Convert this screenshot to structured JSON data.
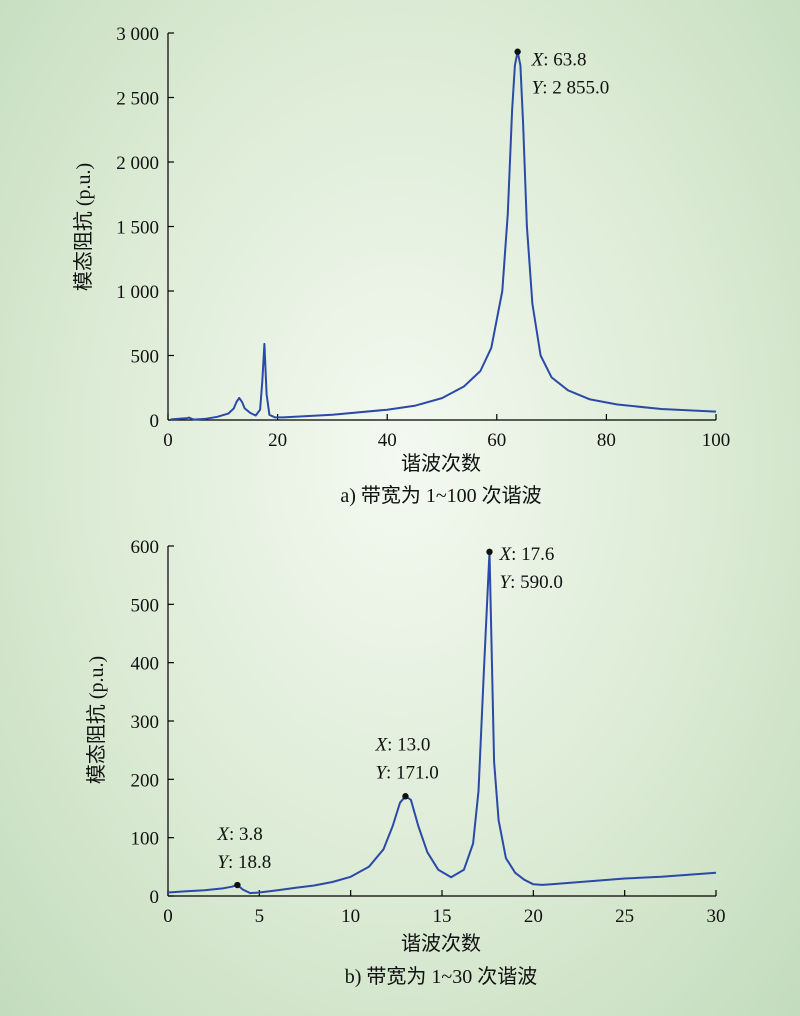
{
  "chart_data": [
    {
      "type": "line",
      "caption": "a) 带宽为 1~100 次谐波",
      "xlabel": "谐波次数",
      "ylabel": "模态阻抗 (p.u.)",
      "xlim": [
        0,
        100
      ],
      "ylim": [
        0,
        3000
      ],
      "xticks": [
        0,
        20,
        40,
        60,
        80,
        100
      ],
      "xtick_labels": [
        "0",
        "20",
        "40",
        "60",
        "80",
        "100"
      ],
      "yticks": [
        0,
        500,
        1000,
        1500,
        2000,
        2500,
        3000
      ],
      "ytick_labels": [
        "0",
        "500",
        "1 000",
        "1 500",
        "2 000",
        "2 500",
        "3 000"
      ],
      "line_color": "#2b4aa8",
      "series": [
        {
          "x": [
            0.5,
            2,
            3.5,
            3.8,
            4.5,
            5,
            7,
            9,
            11,
            12,
            12.5,
            13,
            13.5,
            14,
            15,
            16,
            16.8,
            17.2,
            17.6,
            18,
            18.5,
            19.5,
            21,
            30,
            40,
            45,
            50,
            54,
            57,
            59,
            61,
            62,
            62.8,
            63.3,
            63.8,
            64.3,
            64.8,
            65.5,
            66.5,
            68,
            70,
            73,
            77,
            82,
            90,
            100
          ],
          "y": [
            5,
            10,
            15,
            18.8,
            6,
            4,
            10,
            25,
            50,
            90,
            140,
            171,
            140,
            90,
            55,
            35,
            80,
            300,
            590,
            200,
            40,
            20,
            20,
            40,
            80,
            110,
            170,
            260,
            380,
            560,
            1000,
            1600,
            2400,
            2750,
            2855,
            2750,
            2300,
            1500,
            900,
            500,
            330,
            230,
            160,
            120,
            85,
            65
          ]
        }
      ],
      "annotations": [
        {
          "x": 63.8,
          "y": 2855.0,
          "label_x": "X: 63.8",
          "label_y": "Y: 2 855.0"
        }
      ]
    },
    {
      "type": "line",
      "caption": "b) 带宽为 1~30 次谐波",
      "xlabel": "谐波次数",
      "ylabel": "模态阻抗 (p.u.)",
      "xlim": [
        0,
        30
      ],
      "ylim": [
        0,
        600
      ],
      "xticks": [
        0,
        5,
        10,
        15,
        20,
        25,
        30
      ],
      "xtick_labels": [
        "0",
        "5",
        "10",
        "15",
        "20",
        "25",
        "30"
      ],
      "yticks": [
        0,
        100,
        200,
        300,
        400,
        500,
        600
      ],
      "ytick_labels": [
        "0",
        "100",
        "200",
        "300",
        "400",
        "500",
        "600"
      ],
      "line_color": "#2b4aa8",
      "series": [
        {
          "x": [
            0,
            1,
            2,
            3,
            3.5,
            3.8,
            4.1,
            4.5,
            5,
            6,
            7,
            8,
            9,
            10,
            11,
            11.8,
            12.3,
            12.7,
            13.0,
            13.3,
            13.7,
            14.2,
            14.8,
            15.5,
            16.2,
            16.7,
            17.0,
            17.3,
            17.6,
            17.85,
            18.1,
            18.5,
            19,
            19.5,
            20,
            20.5,
            21,
            23,
            25,
            27,
            30
          ],
          "y": [
            6,
            8,
            10,
            13,
            16,
            18.8,
            11,
            5,
            6,
            10,
            14,
            18,
            24,
            33,
            50,
            80,
            120,
            160,
            171,
            165,
            120,
            75,
            45,
            32,
            45,
            90,
            180,
            390,
            590,
            230,
            130,
            65,
            40,
            28,
            20,
            19,
            20,
            25,
            30,
            33,
            40
          ]
        }
      ],
      "annotations": [
        {
          "x": 17.6,
          "y": 590.0,
          "label_x": "X: 17.6",
          "label_y": "Y: 590.0"
        },
        {
          "x": 13.0,
          "y": 171.0,
          "label_x": "X: 13.0",
          "label_y": "Y: 171.0"
        },
        {
          "x": 3.8,
          "y": 18.8,
          "label_x": "X: 3.8",
          "label_y": "Y: 18.8"
        }
      ]
    }
  ]
}
